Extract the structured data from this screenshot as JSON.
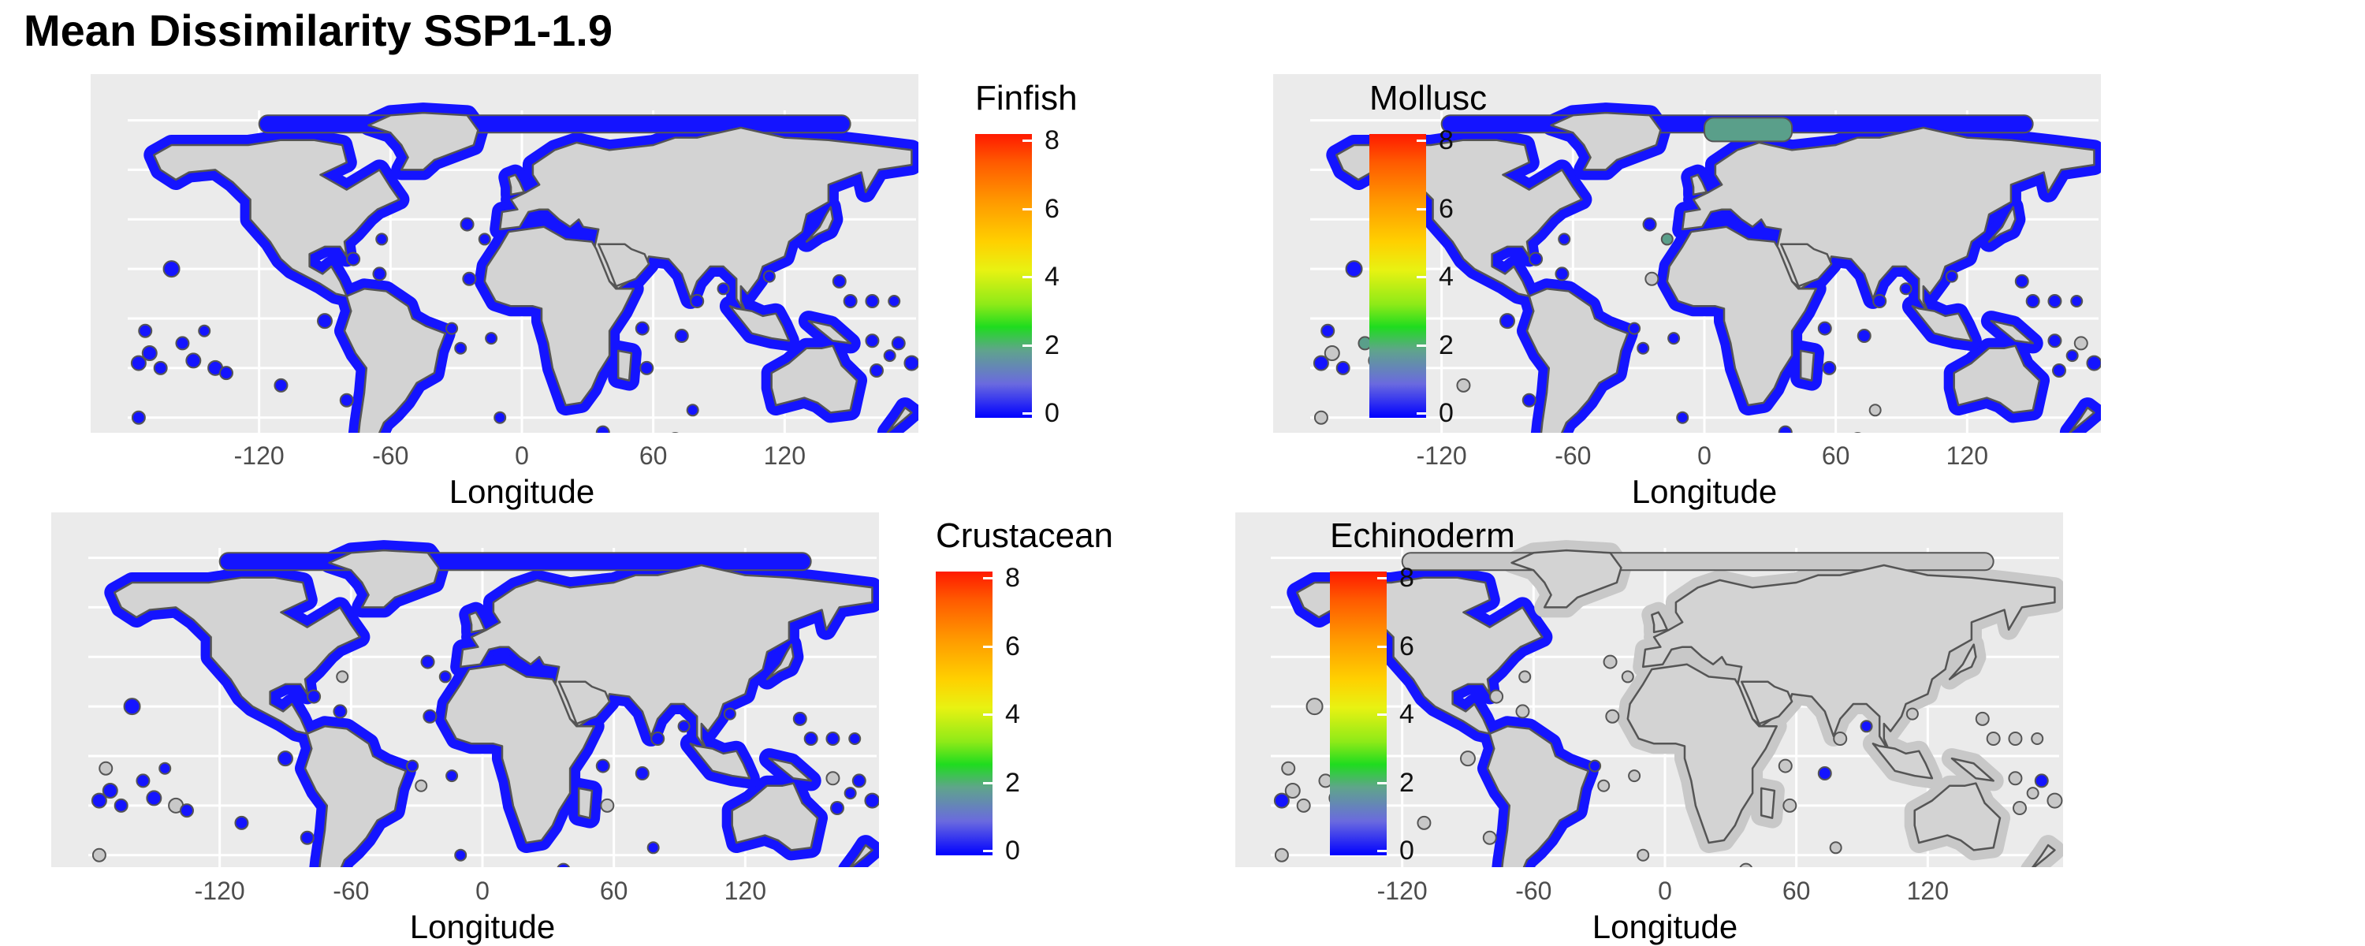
{
  "title": "Mean Dissimilarity SSP1-1.9",
  "legend_ticks": [
    "0",
    "2",
    "4",
    "6",
    "8"
  ],
  "colors": {
    "panel_bg": "#ebebeb",
    "land": "#d3d3d3",
    "coast_outline": "#555555",
    "low": "#1414ff",
    "mid_low": "#5a9f8a",
    "grey_zone": "#c8c8c8",
    "scale": [
      "#0000ff",
      "#6a6adf",
      "#5fa58a",
      "#1fdc1f",
      "#e8f212",
      "#ffd000",
      "#ff9a00",
      "#ff5a00",
      "#ff1a00"
    ]
  },
  "chart_data": [
    {
      "type": "heatmap",
      "legend_title": "Finfish",
      "xlabel": "Longitude",
      "x_ticks": [
        "-120",
        "-60",
        "0",
        "60",
        "120"
      ],
      "xlim": [
        -180,
        180
      ],
      "color_range": [
        0,
        8
      ],
      "color_ticks": [
        0,
        2,
        4,
        6,
        8
      ]
    },
    {
      "type": "heatmap",
      "legend_title": "Mollusc",
      "xlabel": "Longitude",
      "x_ticks": [
        "-120",
        "-60",
        "0",
        "60",
        "120"
      ],
      "xlim": [
        -180,
        180
      ],
      "color_range": [
        0,
        8
      ],
      "color_ticks": [
        0,
        2,
        4,
        6,
        8
      ]
    },
    {
      "type": "heatmap",
      "legend_title": "Crustacean",
      "xlabel": "Longitude",
      "x_ticks": [
        "-120",
        "-60",
        "0",
        "60",
        "120"
      ],
      "xlim": [
        -180,
        180
      ],
      "color_range": [
        0,
        8
      ],
      "color_ticks": [
        0,
        2,
        4,
        6,
        8
      ]
    },
    {
      "type": "heatmap",
      "legend_title": "Echinoderm",
      "xlabel": "Longitude",
      "x_ticks": [
        "-120",
        "-60",
        "0",
        "60",
        "120"
      ],
      "xlim": [
        -180,
        180
      ],
      "color_range": [
        0,
        8
      ],
      "color_ticks": [
        0,
        2,
        4,
        6,
        8
      ]
    }
  ]
}
